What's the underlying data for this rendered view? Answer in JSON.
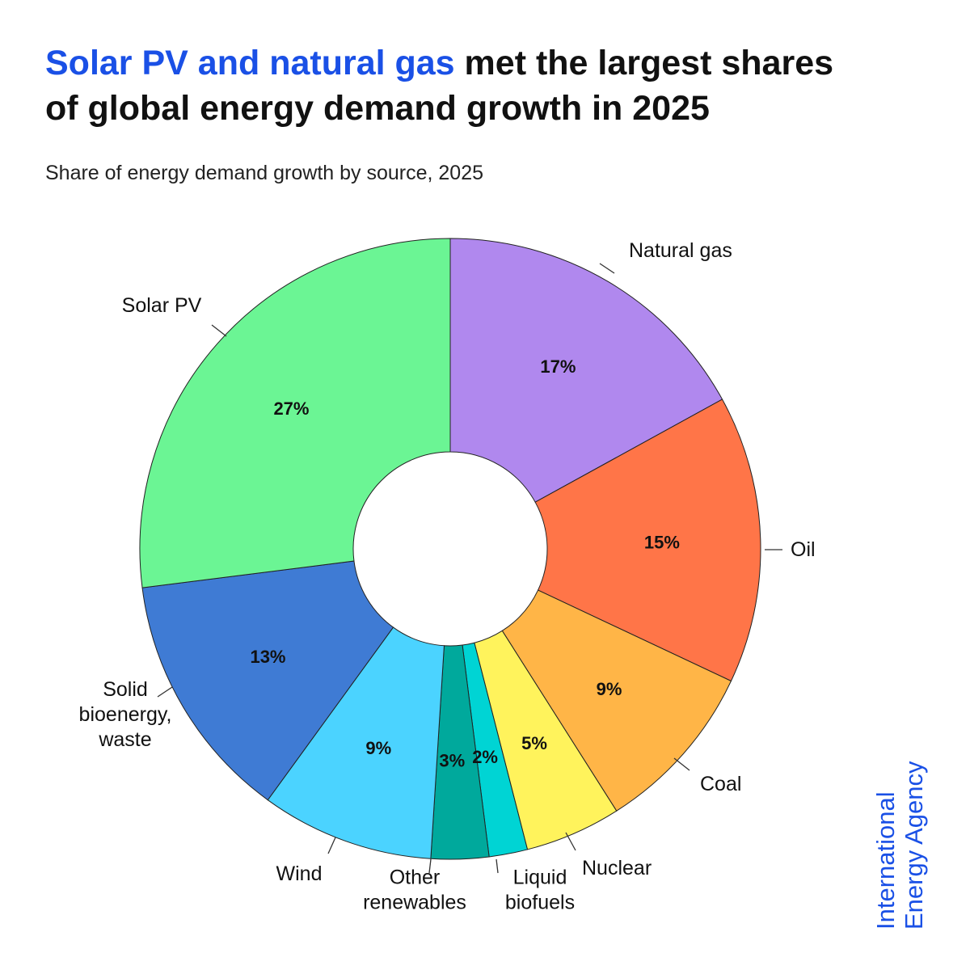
{
  "title": {
    "highlight": "Solar PV and natural gas",
    "rest_line1": " met the largest shares",
    "line2": "of global energy demand growth in 2025"
  },
  "subtitle": "Share of energy demand growth by source, 2025",
  "logo": {
    "line1": "International",
    "line2": "Energy Agency"
  },
  "chart_data": {
    "type": "pie",
    "title": "Solar PV and natural gas met the largest shares of global energy demand growth in 2025",
    "subtitle": "Share of energy demand growth by source, 2025",
    "categories": [
      "Natural gas",
      "Oil",
      "Coal",
      "Nuclear",
      "Liquid biofuels",
      "Other renewables",
      "Wind",
      "Solid bioenergy, waste",
      "Solar PV"
    ],
    "label_lines": [
      [
        "Natural gas"
      ],
      [
        "Oil"
      ],
      [
        "Coal"
      ],
      [
        "Nuclear"
      ],
      [
        "Liquid",
        "biofuels"
      ],
      [
        "Other",
        "renewables"
      ],
      [
        "Wind"
      ],
      [
        "Solid",
        "bioenergy,",
        "waste"
      ],
      [
        "Solar PV"
      ]
    ],
    "values": [
      17,
      15,
      9,
      5,
      2,
      3,
      9,
      13,
      27
    ],
    "value_labels": [
      "17%",
      "15%",
      "9%",
      "5%",
      "2%",
      "3%",
      "9%",
      "13%",
      "27%"
    ],
    "colors": [
      "#b088ee",
      "#ff7548",
      "#ffb547",
      "#fff35c",
      "#00d4d4",
      "#00a99c",
      "#4bd3ff",
      "#3f7bd4",
      "#6bf594"
    ],
    "hole": "donut",
    "legend": "none"
  }
}
